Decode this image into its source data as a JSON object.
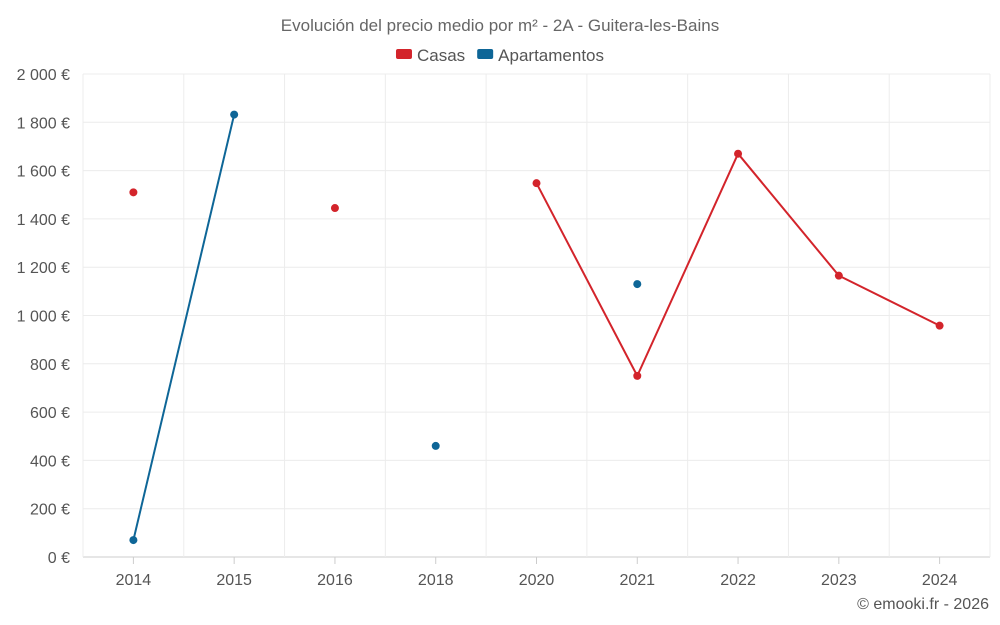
{
  "chart_data": {
    "type": "line",
    "title": "Evolución del precio medio por m² - 2A - Guitera-les-Bains",
    "categories": [
      "2014",
      "2015",
      "2016",
      "2018",
      "2020",
      "2021",
      "2022",
      "2023",
      "2024"
    ],
    "y_tick_labels": [
      "0 €",
      "200 €",
      "400 €",
      "600 €",
      "800 €",
      "1 000 €",
      "1 200 €",
      "1 400 €",
      "1 600 €",
      "1 800 €",
      "2 000 €"
    ],
    "ylim": [
      0,
      2000
    ],
    "grid": true,
    "legend_position": "top-center",
    "series": [
      {
        "name": "Casas",
        "color": "#d3242b",
        "values": [
          1510,
          null,
          1445,
          null,
          1548,
          750,
          1670,
          1165,
          958
        ]
      },
      {
        "name": "Apartamentos",
        "color": "#0e6697",
        "values": [
          70,
          1832,
          null,
          460,
          null,
          1130,
          null,
          null,
          null
        ]
      }
    ]
  },
  "credit": "© emooki.fr - 2026"
}
